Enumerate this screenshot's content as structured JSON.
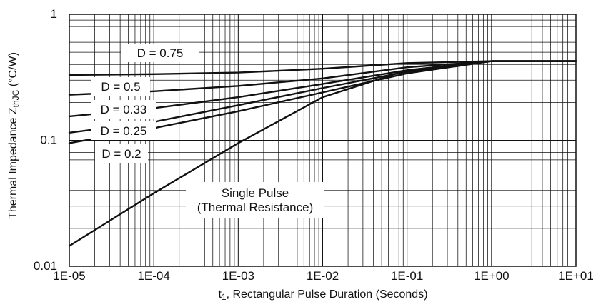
{
  "chart_data": {
    "type": "line",
    "title": "",
    "xlabel": {
      "prefix": "t",
      "subscript": "1",
      "suffix": ", Rectangular Pulse Duration (Seconds)"
    },
    "ylabel": {
      "prefix": "Thermal Impedance Z",
      "subscript": "thJC",
      "suffix": " (°C/W)"
    },
    "xscale": "log",
    "yscale": "log",
    "xlim": [
      1e-05,
      10
    ],
    "ylim": [
      0.01,
      1
    ],
    "grid": true,
    "x_ticks": [
      1e-05,
      0.0001,
      0.001,
      0.01,
      0.1,
      1,
      10
    ],
    "x_tick_labels": [
      "1E-05",
      "1E-04",
      "1E-03",
      "1E-02",
      "1E-01",
      "1E+00",
      "1E+01"
    ],
    "y_ticks": [
      0.01,
      0.1,
      1
    ],
    "y_tick_labels": [
      "0.01",
      "0.1",
      "1"
    ],
    "series": [
      {
        "name": "D = 0.75",
        "x": [
          1e-05,
          0.0001,
          0.001,
          0.01,
          0.1,
          1,
          10
        ],
        "y": [
          0.33,
          0.335,
          0.345,
          0.37,
          0.41,
          0.425,
          0.425
        ]
      },
      {
        "name": "D = 0.5",
        "x": [
          1e-05,
          0.0001,
          0.001,
          0.01,
          0.1,
          1,
          10
        ],
        "y": [
          0.23,
          0.245,
          0.27,
          0.31,
          0.38,
          0.425,
          0.425
        ]
      },
      {
        "name": "D = 0.33",
        "x": [
          1e-05,
          0.0001,
          0.001,
          0.01,
          0.1,
          1,
          10
        ],
        "y": [
          0.155,
          0.18,
          0.22,
          0.28,
          0.36,
          0.425,
          0.425
        ]
      },
      {
        "name": "D = 0.25",
        "x": [
          1e-05,
          0.0001,
          0.001,
          0.01,
          0.1,
          1,
          10
        ],
        "y": [
          0.115,
          0.14,
          0.19,
          0.26,
          0.35,
          0.425,
          0.425
        ]
      },
      {
        "name": "D = 0.2",
        "x": [
          1e-05,
          0.0001,
          0.001,
          0.01,
          0.1,
          1,
          10
        ],
        "y": [
          0.095,
          0.125,
          0.17,
          0.24,
          0.34,
          0.425,
          0.425
        ]
      },
      {
        "name": "Single Pulse (Thermal Resistance)",
        "x": [
          1e-05,
          0.0001,
          0.001,
          0.01,
          0.1,
          1,
          10
        ],
        "y": [
          0.0145,
          0.038,
          0.095,
          0.22,
          0.36,
          0.425,
          0.425
        ]
      }
    ],
    "annotations": [
      {
        "id": "d075",
        "lines": [
          "D = 0.75"
        ]
      },
      {
        "id": "d05",
        "lines": [
          "D = 0.5"
        ]
      },
      {
        "id": "d033",
        "lines": [
          "D = 0.33"
        ]
      },
      {
        "id": "d025",
        "lines": [
          "D = 0.25"
        ]
      },
      {
        "id": "d02",
        "lines": [
          "D = 0.2"
        ]
      },
      {
        "id": "single",
        "lines": [
          "Single Pulse",
          "(Thermal Resistance)"
        ]
      }
    ]
  },
  "colors": {
    "background": "#ffffff",
    "axis": "#111111",
    "grid": "#111111",
    "line": "#111111",
    "label_fill": "#ffffff"
  }
}
